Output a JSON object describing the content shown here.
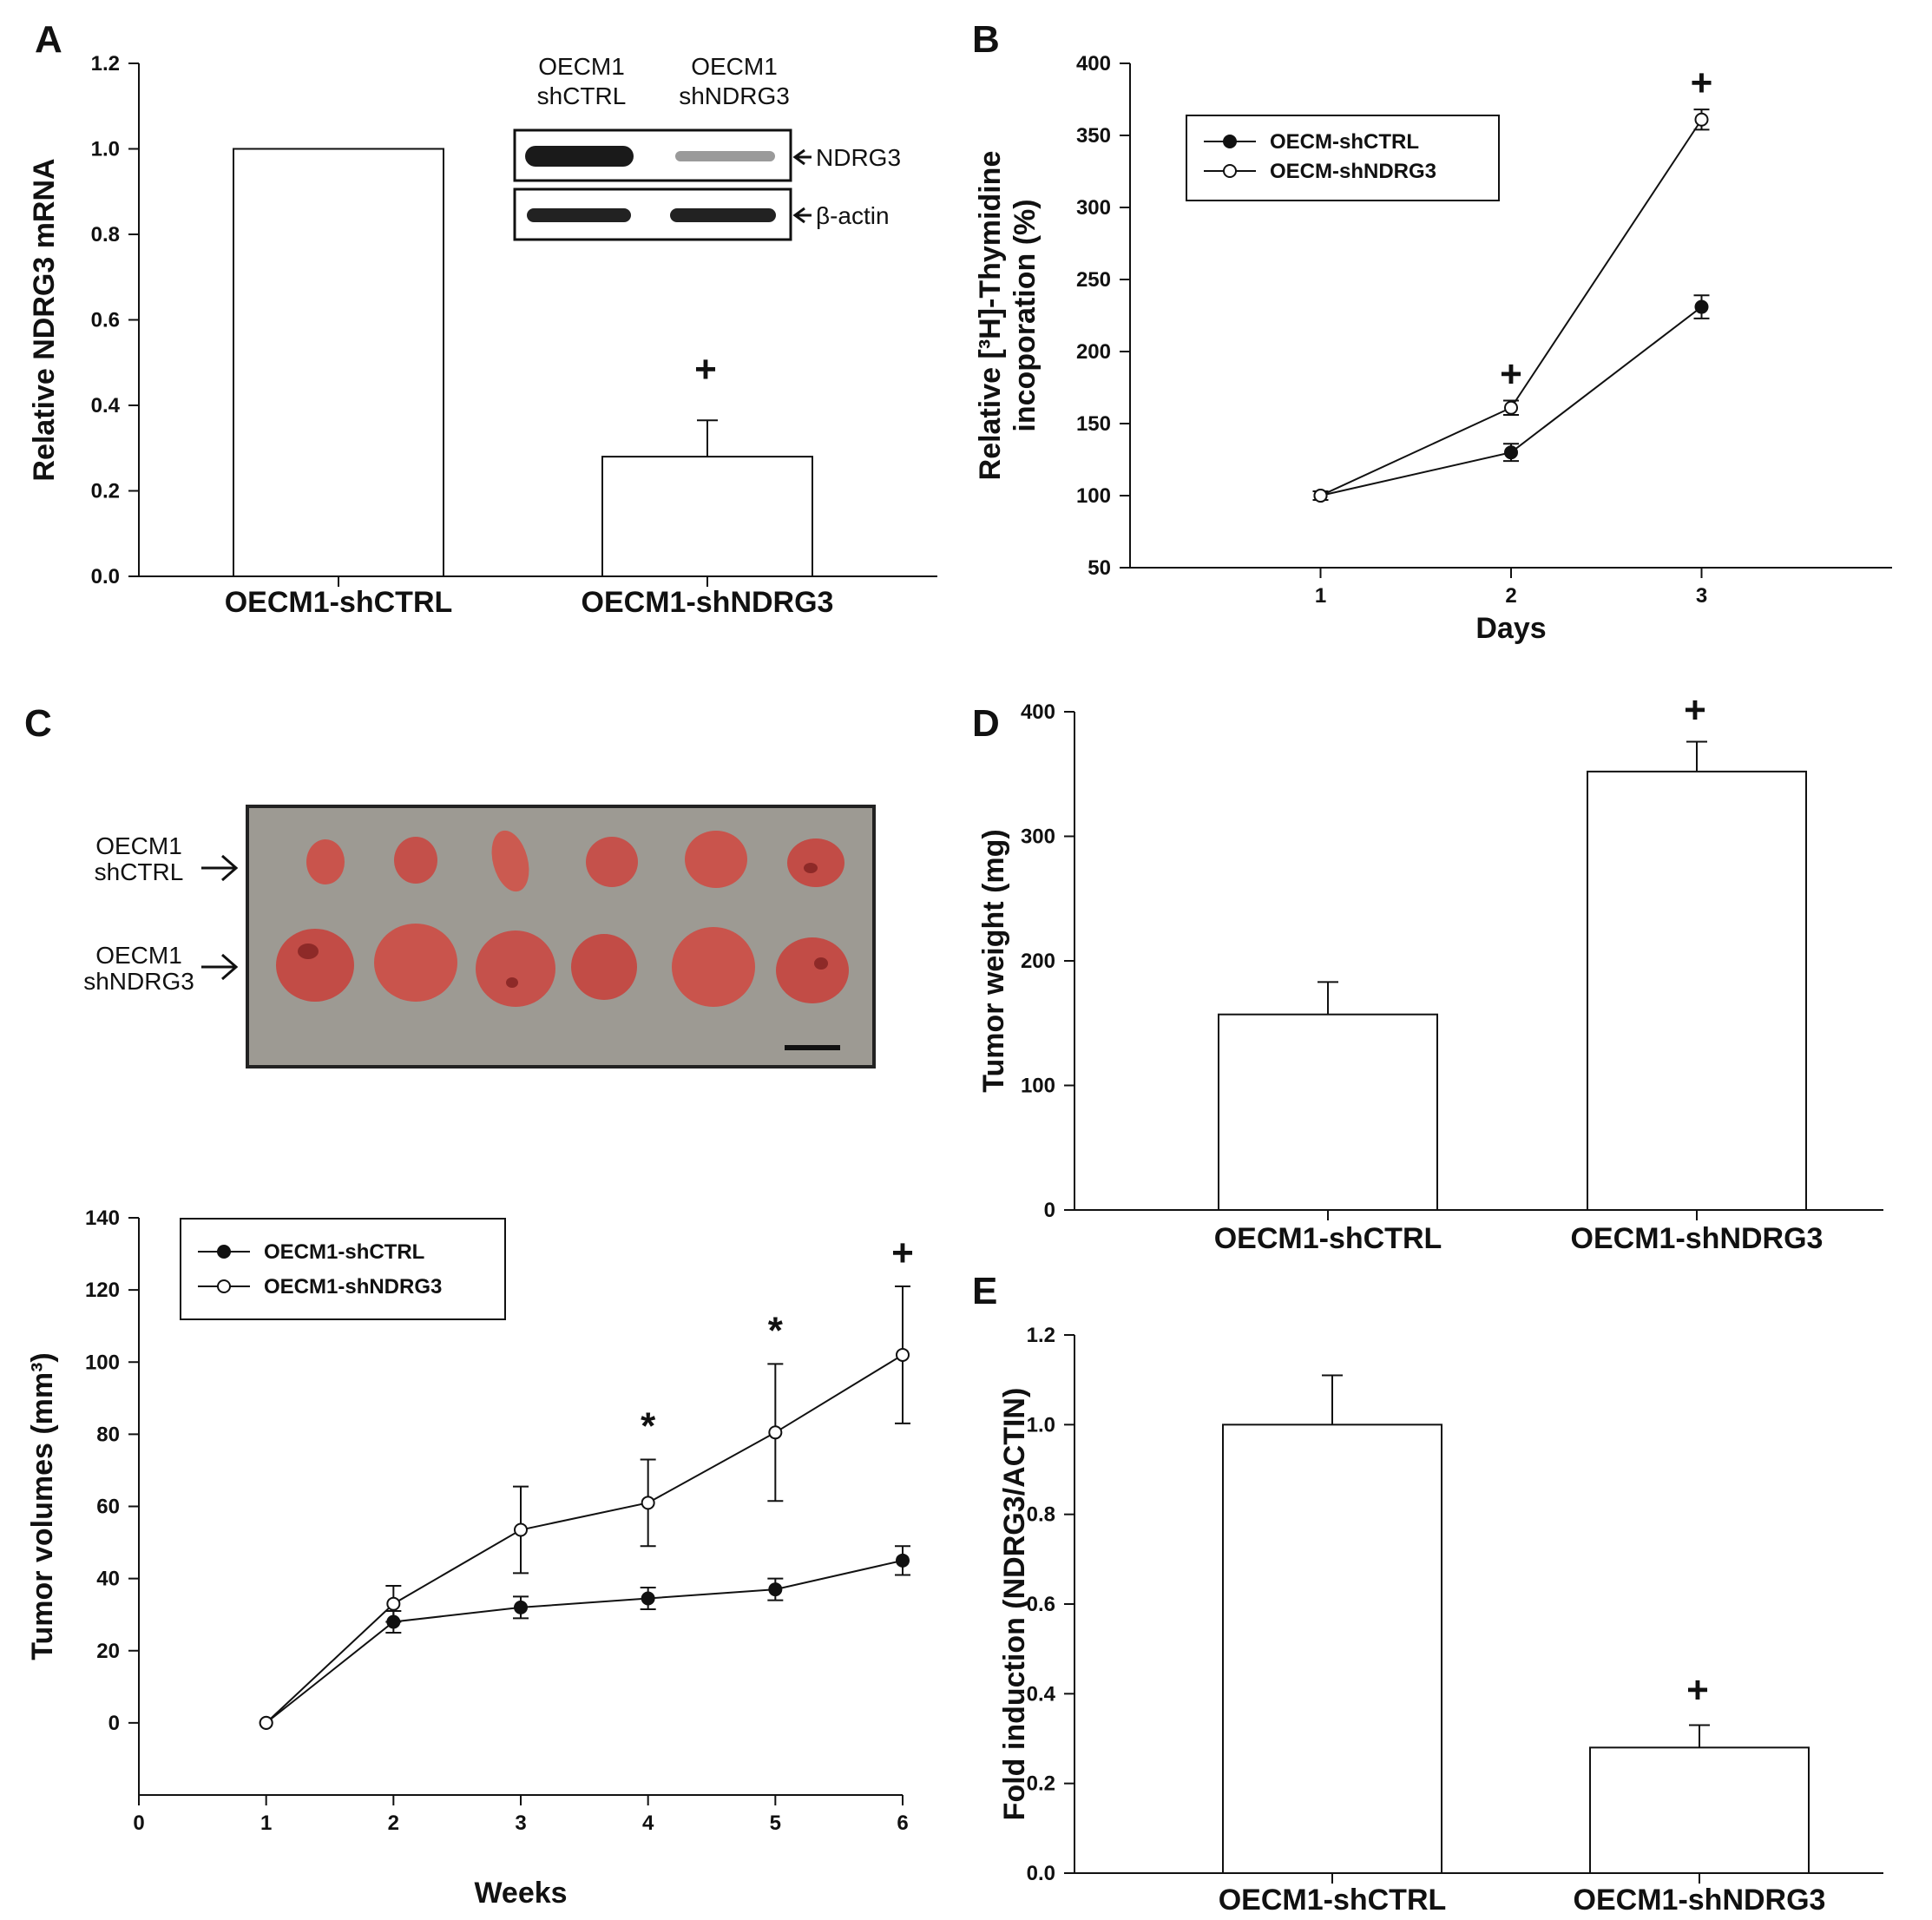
{
  "colors": {
    "ink": "#111111",
    "bar_fill": "#ffffff",
    "photo_bg": "#9d9a93",
    "tumor": "#c9544c",
    "tumor_dark": "#8e2a28"
  },
  "blot": {
    "lane1_line1": "OECM1",
    "lane1_line2": "shCTRL",
    "lane2_line1": "OECM1",
    "lane2_line2": "shNDRG3",
    "band1_label": "NDRG3",
    "band2_label": "β-actin"
  },
  "photo": {
    "row1_line1": "OECM1",
    "row1_line2": "shCTRL",
    "row2_line1": "OECM1",
    "row2_line2": "shNDRG3"
  },
  "chart_data": [
    {
      "id": "A",
      "type": "bar",
      "panel_label": "A",
      "categories": [
        "OECM1-shCTRL",
        "OECM1-shNDRG3"
      ],
      "values": [
        1.0,
        0.28
      ],
      "errors": [
        0,
        0.085
      ],
      "ylabel": "Relative NDRG3 mRNA",
      "xlabel": "",
      "ylim": [
        0,
        1.2
      ],
      "yticks": [
        "0.0",
        "0.2",
        "0.4",
        "0.6",
        "0.8",
        "1.0",
        "1.2"
      ],
      "significance": [
        "",
        "+"
      ]
    },
    {
      "id": "B",
      "type": "line",
      "panel_label": "B",
      "x": [
        1,
        2,
        3
      ],
      "series": [
        {
          "name": "OECM-shCTRL",
          "marker": "filled",
          "values": [
            100,
            130,
            231
          ],
          "errors": [
            3,
            6,
            8
          ]
        },
        {
          "name": "OECM-shNDRG3",
          "marker": "open",
          "values": [
            100,
            161,
            361
          ],
          "errors": [
            3,
            5,
            7
          ]
        }
      ],
      "xlim": [
        0,
        4
      ],
      "ylim": [
        50,
        400
      ],
      "xticks": [
        "1",
        "2",
        "3"
      ],
      "yticks": [
        "50",
        "100",
        "150",
        "200",
        "250",
        "300",
        "350",
        "400"
      ],
      "xlabel": "Days",
      "ylabel_line1": "Relative  [³H]-Thymidine",
      "ylabel_line2": "incoporation (%)",
      "significance": [
        "",
        "+",
        "+"
      ]
    },
    {
      "id": "C",
      "type": "line",
      "panel_label": "C",
      "x": [
        1,
        2,
        3,
        4,
        5,
        6
      ],
      "series": [
        {
          "name": "OECM1-shCTRL",
          "marker": "filled",
          "values": [
            0,
            28,
            32,
            34.5,
            37,
            45
          ],
          "errors": [
            0,
            3,
            3,
            3,
            3,
            4
          ]
        },
        {
          "name": "OECM1-shNDRG3",
          "marker": "open",
          "values": [
            0,
            33,
            53.5,
            61,
            80.5,
            102
          ],
          "errors": [
            0,
            5,
            12,
            12,
            19,
            19
          ]
        }
      ],
      "xlim": [
        0,
        6
      ],
      "ylim": [
        -20,
        140
      ],
      "xticks": [
        "0",
        "1",
        "2",
        "3",
        "4",
        "5",
        "6"
      ],
      "yticks": [
        "0",
        "20",
        "40",
        "60",
        "80",
        "100",
        "120",
        "140"
      ],
      "xlabel": "Weeks",
      "ylabel": "Tumor volumes (mm³)",
      "significance": [
        "",
        "",
        "",
        "*",
        "*",
        "+"
      ]
    },
    {
      "id": "D",
      "type": "bar",
      "panel_label": "D",
      "categories": [
        "OECM1-shCTRL",
        "OECM1-shNDRG3"
      ],
      "values": [
        157,
        352
      ],
      "errors": [
        26,
        24
      ],
      "ylabel": "Tumor weight (mg)",
      "xlabel": "",
      "ylim": [
        0,
        400
      ],
      "yticks": [
        "0",
        "100",
        "200",
        "300",
        "400"
      ],
      "significance": [
        "",
        "+"
      ]
    },
    {
      "id": "E",
      "type": "bar",
      "panel_label": "E",
      "categories": [
        "OECM1-shCTRL",
        "OECM1-shNDRG3"
      ],
      "values": [
        1.0,
        0.28
      ],
      "errors": [
        0.11,
        0.05
      ],
      "ylabel": "Fold induction (NDRG3/ACTIN)",
      "xlabel": "",
      "ylim": [
        0,
        1.2
      ],
      "yticks": [
        "0.0",
        "0.2",
        "0.4",
        "0.6",
        "0.8",
        "1.0",
        "1.2"
      ],
      "significance": [
        "",
        "+"
      ]
    }
  ]
}
